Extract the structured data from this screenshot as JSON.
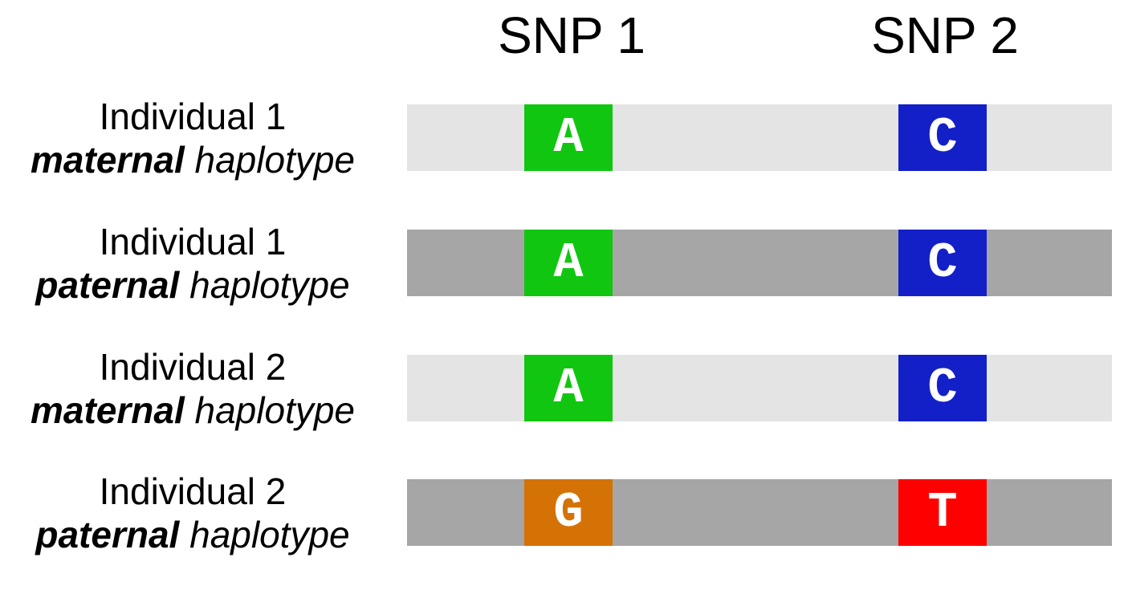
{
  "headers": [
    "SNP 1",
    "SNP 2"
  ],
  "colors": {
    "bar_light": "#e4e4e4",
    "bar_dark": "#a6a6a6",
    "A": "#11c611",
    "C": "#1320c8",
    "G": "#d57205",
    "T": "#ff0000"
  },
  "rows": [
    {
      "line1": "Individual 1",
      "emph": "maternal",
      "rest": " haplotype",
      "shade": "light",
      "alleles": [
        "A",
        "C"
      ]
    },
    {
      "line1": "Individual 1",
      "emph": "paternal",
      "rest": " haplotype",
      "shade": "dark",
      "alleles": [
        "A",
        "C"
      ]
    },
    {
      "line1": "Individual 2",
      "emph": "maternal",
      "rest": " haplotype",
      "shade": "light",
      "alleles": [
        "A",
        "C"
      ]
    },
    {
      "line1": "Individual 2",
      "emph": "paternal",
      "rest": " haplotype",
      "shade": "dark",
      "alleles": [
        "G",
        "T"
      ]
    }
  ]
}
